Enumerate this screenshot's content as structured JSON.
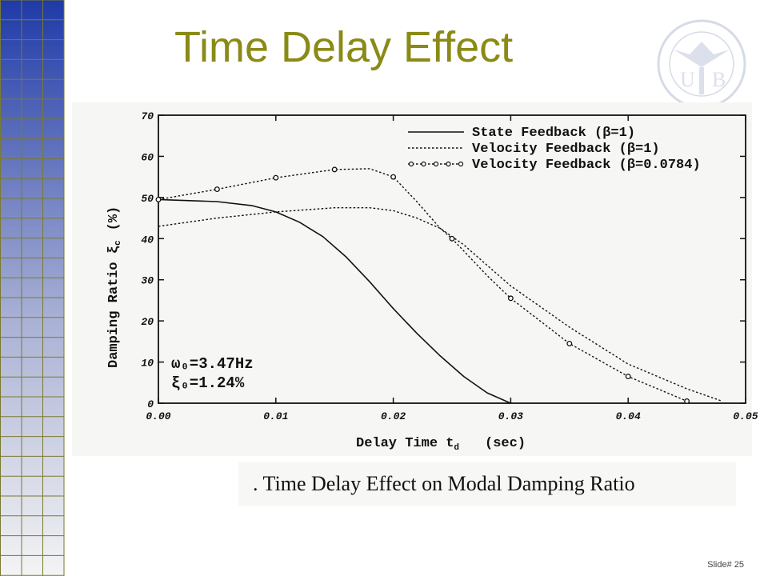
{
  "slide": {
    "title": "Time Delay Effect",
    "caption": ". Time Delay Effect on Modal Damping Ratio",
    "slide_number": "Slide# 25",
    "title_color": "#8a8a16",
    "grid_colors": {
      "top": "#1f3aa8",
      "bottom": "#f4f4f4",
      "line": "#7a7a30"
    }
  },
  "chart_data": {
    "type": "line",
    "xlabel": "Delay Time t",
    "xlabel_sub": "d",
    "xunit": "(sec)",
    "ylabel": "Damping Ratio ξ",
    "ylabel_sub": "c",
    "yunit": "(%)",
    "xlim": [
      0,
      0.05
    ],
    "ylim": [
      0,
      70
    ],
    "x_ticks": [
      "0.00",
      "0.01",
      "0.02",
      "0.03",
      "0.04",
      "0.05"
    ],
    "y_ticks": [
      "0",
      "10",
      "20",
      "30",
      "40",
      "50",
      "60",
      "70"
    ],
    "legend_position": "top-right",
    "annotations": [
      "ω₀=3.47Hz",
      "ξ₀=1.24%"
    ],
    "series": [
      {
        "name": "State Feedback (β=1)",
        "style": "solid",
        "x": [
          0,
          0.005,
          0.008,
          0.01,
          0.012,
          0.014,
          0.016,
          0.018,
          0.02,
          0.022,
          0.024,
          0.026,
          0.028,
          0.03
        ],
        "y": [
          49.5,
          49.0,
          48.0,
          46.5,
          44.0,
          40.5,
          35.5,
          29.5,
          23.0,
          17.0,
          11.5,
          6.5,
          2.5,
          0
        ]
      },
      {
        "name": "Velocity Feedback (β=1)",
        "style": "dotted",
        "x": [
          0,
          0.005,
          0.01,
          0.015,
          0.018,
          0.02,
          0.022,
          0.024,
          0.026,
          0.028,
          0.03,
          0.035,
          0.04,
          0.045,
          0.048
        ],
        "y": [
          43.0,
          45.0,
          46.5,
          47.5,
          47.5,
          46.8,
          45.0,
          42.5,
          38.5,
          33.5,
          28.5,
          18.5,
          9.5,
          3.5,
          0.5
        ]
      },
      {
        "name": "Velocity Feedback (β=0.0784)",
        "style": "dotted-marker",
        "x": [
          0,
          0.005,
          0.01,
          0.015,
          0.018,
          0.02,
          0.022,
          0.024,
          0.025,
          0.026,
          0.028,
          0.03,
          0.035,
          0.04,
          0.045
        ],
        "y": [
          49.5,
          52.0,
          54.8,
          56.8,
          57.0,
          55.0,
          49.0,
          42.5,
          40.0,
          37.0,
          31.0,
          25.5,
          14.5,
          6.5,
          0.5
        ],
        "markers_x": [
          0,
          0.005,
          0.01,
          0.015,
          0.02,
          0.025,
          0.03,
          0.035,
          0.04,
          0.045
        ]
      }
    ]
  }
}
